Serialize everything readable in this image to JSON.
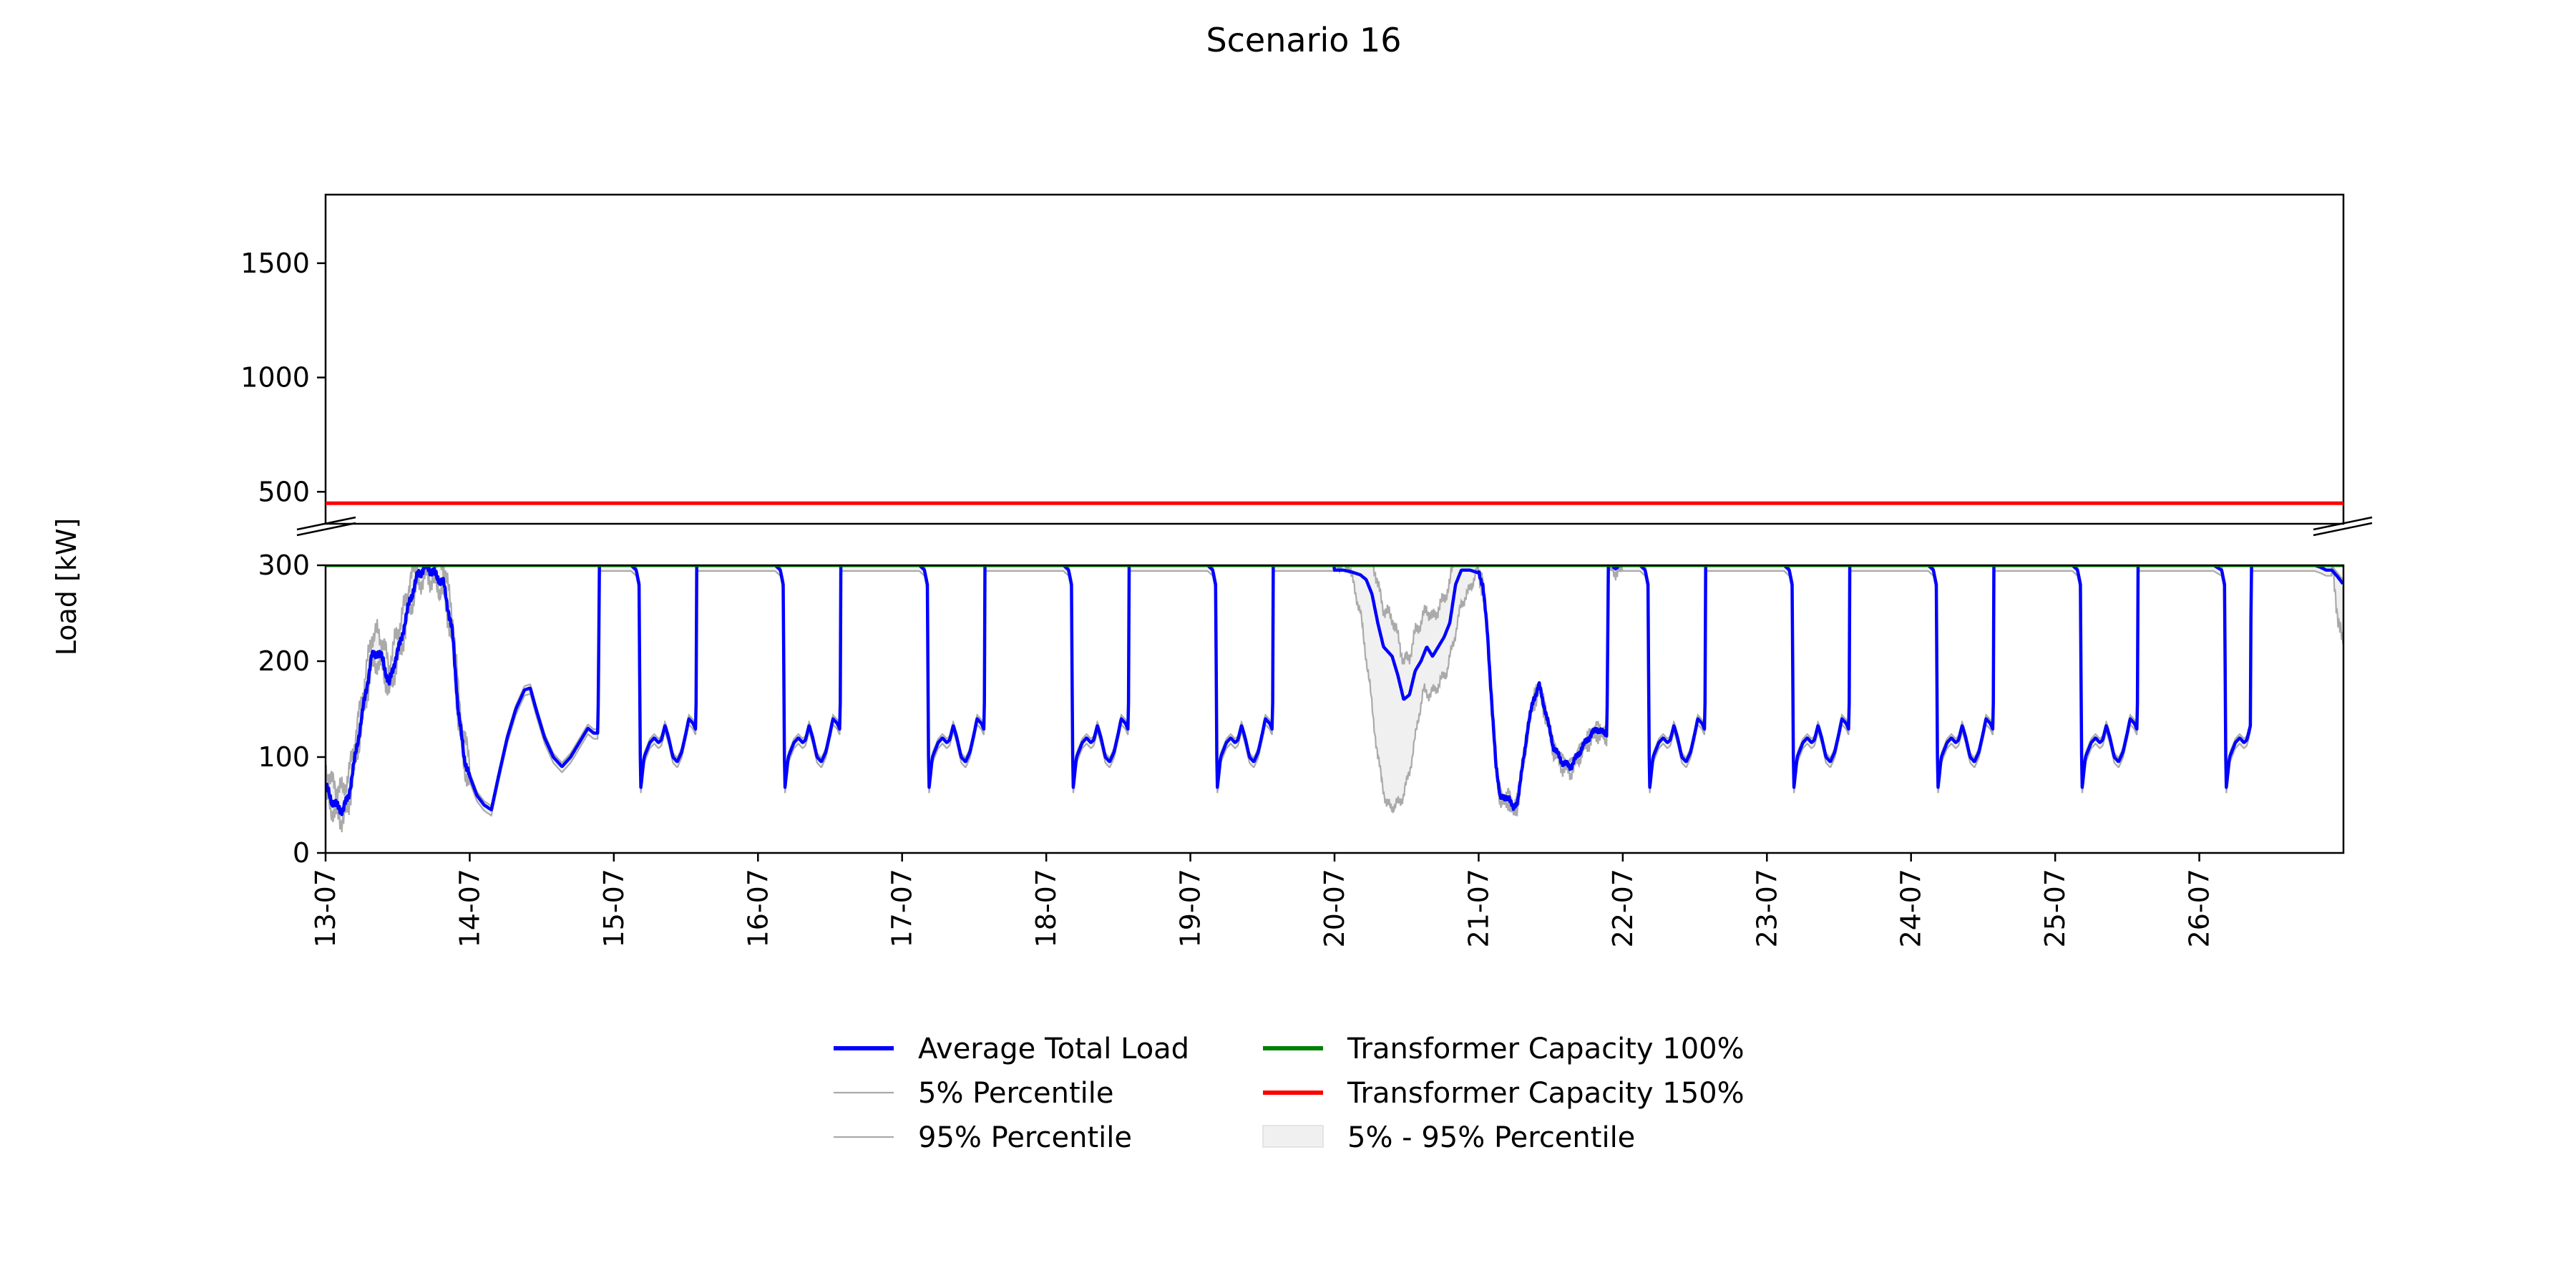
{
  "chart_data": {
    "type": "line",
    "title": "Scenario 16",
    "ylabel": "Load [kW]",
    "xlabel": "",
    "broken_y_axis": true,
    "upper_panel": {
      "ylim": [
        360,
        1800
      ],
      "yticks": [
        500,
        1000,
        1500
      ]
    },
    "lower_panel": {
      "ylim": [
        0,
        300
      ],
      "yticks": [
        0,
        100,
        200,
        300
      ]
    },
    "x_range_days": [
      "13-07",
      "27-07"
    ],
    "x_ticks": [
      "13-07",
      "14-07",
      "15-07",
      "16-07",
      "17-07",
      "18-07",
      "19-07",
      "20-07",
      "21-07",
      "22-07",
      "23-07",
      "24-07",
      "25-07",
      "26-07"
    ],
    "grid": false,
    "legend_position": "bottom-center",
    "capacity_lines": [
      {
        "name": "Transformer Capacity 100%",
        "value": 300,
        "color": "#008000"
      },
      {
        "name": "Transformer Capacity 150%",
        "value": 450,
        "color": "#ff0000"
      }
    ],
    "series": [
      {
        "name": "Average Total Load",
        "color": "#0000ff"
      },
      {
        "name": "5% Percentile",
        "color": "#aaaaaa"
      },
      {
        "name": "95% Percentile",
        "color": "#aaaaaa"
      },
      {
        "name": "5% - 95% Percentile",
        "color": "#f0f0f0"
      }
    ],
    "normal_day_profile": [
      [
        0.0,
        300
      ],
      [
        0.03,
        300
      ],
      [
        0.12,
        300
      ],
      [
        0.155,
        295
      ],
      [
        0.175,
        280
      ],
      [
        0.185,
        65
      ],
      [
        0.21,
        100
      ],
      [
        0.25,
        115
      ],
      [
        0.28,
        120
      ],
      [
        0.31,
        115
      ],
      [
        0.33,
        118
      ],
      [
        0.355,
        133
      ],
      [
        0.38,
        120
      ],
      [
        0.41,
        100
      ],
      [
        0.44,
        95
      ],
      [
        0.47,
        105
      ],
      [
        0.5,
        125
      ],
      [
        0.52,
        140
      ],
      [
        0.55,
        135
      ],
      [
        0.57,
        128
      ],
      [
        0.575,
        300
      ],
      [
        1.0,
        300
      ]
    ],
    "day_overrides": [
      {
        "day": 0,
        "profile": [
          [
            0.0,
            70
          ],
          [
            0.04,
            55
          ],
          [
            0.08,
            48
          ],
          [
            0.12,
            45
          ],
          [
            0.16,
            60
          ],
          [
            0.2,
            95
          ],
          [
            0.26,
            150
          ],
          [
            0.32,
            205
          ],
          [
            0.36,
            210
          ],
          [
            0.4,
            200
          ],
          [
            0.44,
            175
          ],
          [
            0.48,
            200
          ],
          [
            0.52,
            220
          ],
          [
            0.58,
            260
          ],
          [
            0.64,
            290
          ],
          [
            0.7,
            300
          ],
          [
            0.76,
            290
          ],
          [
            0.82,
            280
          ],
          [
            0.88,
            230
          ],
          [
            0.92,
            150
          ],
          [
            0.96,
            100
          ],
          [
            1.0,
            80
          ]
        ],
        "p5_offset": -10,
        "p95_offset": 20,
        "noise": 15
      },
      {
        "day": 1,
        "profile": [
          [
            0.0,
            80
          ],
          [
            0.05,
            60
          ],
          [
            0.1,
            50
          ],
          [
            0.15,
            45
          ],
          [
            0.2,
            80
          ],
          [
            0.26,
            120
          ],
          [
            0.32,
            150
          ],
          [
            0.38,
            170
          ],
          [
            0.42,
            172
          ],
          [
            0.46,
            150
          ],
          [
            0.52,
            120
          ],
          [
            0.58,
            100
          ],
          [
            0.64,
            90
          ],
          [
            0.7,
            100
          ],
          [
            0.76,
            115
          ],
          [
            0.82,
            130
          ],
          [
            0.86,
            125
          ],
          [
            0.89,
            125
          ],
          [
            0.9,
            300
          ],
          [
            1.0,
            300
          ]
        ]
      },
      {
        "day": 7,
        "profile": [
          [
            0.0,
            295
          ],
          [
            0.06,
            295
          ],
          [
            0.12,
            293
          ],
          [
            0.18,
            290
          ],
          [
            0.22,
            285
          ],
          [
            0.26,
            270
          ],
          [
            0.3,
            240
          ],
          [
            0.34,
            215
          ],
          [
            0.4,
            205
          ],
          [
            0.44,
            185
          ],
          [
            0.48,
            160
          ],
          [
            0.52,
            165
          ],
          [
            0.56,
            190
          ],
          [
            0.6,
            200
          ],
          [
            0.64,
            215
          ],
          [
            0.68,
            205
          ],
          [
            0.72,
            215
          ],
          [
            0.76,
            225
          ],
          [
            0.8,
            240
          ],
          [
            0.84,
            280
          ],
          [
            0.88,
            295
          ],
          [
            0.94,
            295
          ],
          [
            1.0,
            292
          ]
        ],
        "p5_low": [
          [
            0.0,
            300
          ],
          [
            0.1,
            300
          ],
          [
            0.18,
            250
          ],
          [
            0.24,
            180
          ],
          [
            0.3,
            100
          ],
          [
            0.36,
            50
          ],
          [
            0.42,
            48
          ],
          [
            0.48,
            60
          ],
          [
            0.54,
            100
          ],
          [
            0.58,
            140
          ],
          [
            0.62,
            170
          ],
          [
            0.66,
            165
          ],
          [
            0.72,
            175
          ],
          [
            0.78,
            190
          ],
          [
            0.84,
            230
          ],
          [
            0.88,
            260
          ],
          [
            0.94,
            275
          ],
          [
            1.0,
            300
          ]
        ]
      },
      {
        "day": 8,
        "profile": [
          [
            0.0,
            292
          ],
          [
            0.03,
            280
          ],
          [
            0.06,
            230
          ],
          [
            0.09,
            160
          ],
          [
            0.12,
            90
          ],
          [
            0.15,
            60
          ],
          [
            0.18,
            55
          ],
          [
            0.21,
            60
          ],
          [
            0.24,
            45
          ],
          [
            0.27,
            55
          ],
          [
            0.3,
            85
          ],
          [
            0.34,
            130
          ],
          [
            0.38,
            160
          ],
          [
            0.42,
            175
          ],
          [
            0.46,
            150
          ],
          [
            0.52,
            110
          ],
          [
            0.58,
            95
          ],
          [
            0.64,
            90
          ],
          [
            0.7,
            105
          ],
          [
            0.76,
            120
          ],
          [
            0.82,
            130
          ],
          [
            0.86,
            125
          ],
          [
            0.89,
            125
          ],
          [
            0.9,
            300
          ],
          [
            1.0,
            300
          ]
        ],
        "noise": 10
      },
      {
        "day": 13,
        "profile": [
          [
            0.0,
            300
          ],
          [
            0.1,
            300
          ],
          [
            0.155,
            295
          ],
          [
            0.175,
            280
          ],
          [
            0.185,
            65
          ],
          [
            0.21,
            100
          ],
          [
            0.25,
            115
          ],
          [
            0.28,
            120
          ],
          [
            0.31,
            115
          ],
          [
            0.33,
            118
          ],
          [
            0.355,
            133
          ],
          [
            0.36,
            300
          ],
          [
            0.8,
            300
          ],
          [
            0.84,
            298
          ],
          [
            0.88,
            295
          ],
          [
            0.92,
            295
          ],
          [
            0.96,
            288
          ],
          [
            1.0,
            280
          ]
        ],
        "p5_end_drop": true
      }
    ]
  },
  "legend": {
    "items": [
      {
        "label": "Average Total Load",
        "kind": "line-thick",
        "color": "#0000ff"
      },
      {
        "label": "5% Percentile",
        "kind": "line-thin",
        "color": "#aaaaaa"
      },
      {
        "label": "95% Percentile",
        "kind": "line-thin",
        "color": "#aaaaaa"
      },
      {
        "label": "Transformer Capacity 100%",
        "kind": "line-thick",
        "color": "#008000"
      },
      {
        "label": "Transformer Capacity 150%",
        "kind": "line-thick",
        "color": "#ff0000"
      },
      {
        "label": "5% - 95% Percentile",
        "kind": "patch",
        "color": "#f0f0f0"
      }
    ]
  }
}
